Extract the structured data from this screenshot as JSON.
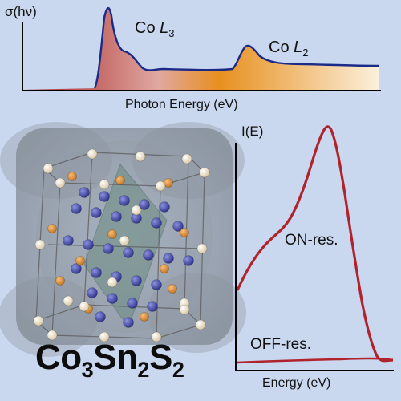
{
  "top_plot": {
    "y_label": "σ(hν)",
    "x_label": "Photon Energy (eV)",
    "peak_l3": {
      "element": "Co",
      "edge": "L",
      "index": "3"
    },
    "peak_l2": {
      "element": "Co",
      "edge": "L",
      "index": "2"
    },
    "colors": {
      "line": "#1b2a86",
      "fill_left": "#a52127",
      "fill_mid": "#e88f1e",
      "fill_right": "#fbf0dc"
    }
  },
  "emission_plot": {
    "y_label": "I(E)",
    "x_label": "Energy (eV)",
    "on_label": "ON-res.",
    "off_label": "OFF-res.",
    "color": "#b0222c"
  },
  "formula": {
    "parts": [
      {
        "el": "Co",
        "n": "3"
      },
      {
        "el": "Sn",
        "n": "2"
      },
      {
        "el": "S",
        "n": "2"
      }
    ]
  },
  "crystal": {
    "atom_colors": {
      "blue": "#3a3f96",
      "orange": "#d98b2c",
      "cream": "#f4e6c8"
    },
    "cell_color": "#6f6f6f",
    "plane_color": "#6a8a80",
    "cloud_color": "#7d8590"
  },
  "chart_data": [
    {
      "type": "area",
      "title": "",
      "xlabel": "Photon Energy (eV)",
      "ylabel": "σ(hν)",
      "annotations": [
        "Co L3",
        "Co L2"
      ],
      "note": "qualitative schematic, no numeric ticks"
    },
    {
      "type": "line",
      "title": "",
      "xlabel": "Energy (eV)",
      "ylabel": "I(E)",
      "series": [
        {
          "name": "ON-res."
        },
        {
          "name": "OFF-res."
        }
      ],
      "note": "qualitative schematic, no numeric ticks"
    }
  ]
}
